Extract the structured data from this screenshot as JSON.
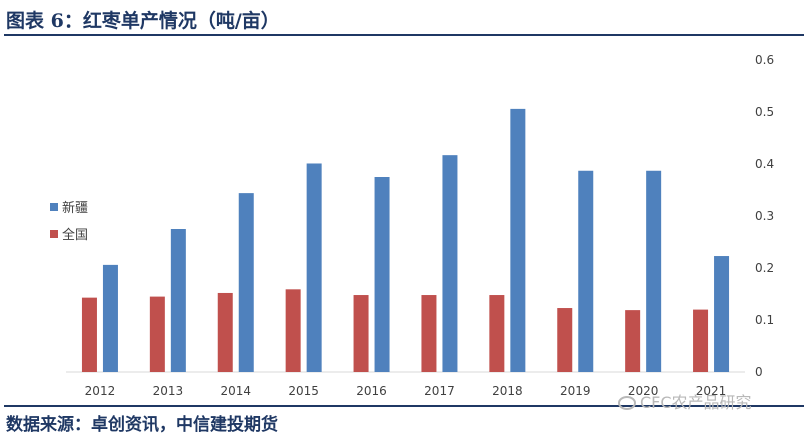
{
  "figure": {
    "title": "图表 6：红枣单产情况（吨/亩）",
    "source": "数据来源：卓创资讯，中信建投期货",
    "watermark": "CFC农产品研究"
  },
  "colors": {
    "xinjiang": "#4F81BD",
    "national": "#C0504D",
    "rule": "#1F3864",
    "axis": "#D9D9D9"
  },
  "chart_data": {
    "type": "bar",
    "categories": [
      "2012",
      "2013",
      "2014",
      "2015",
      "2016",
      "2017",
      "2018",
      "2019",
      "2020",
      "2021"
    ],
    "series": [
      {
        "name": "全国",
        "values": [
          0.143,
          0.145,
          0.152,
          0.159,
          0.148,
          0.148,
          0.148,
          0.123,
          0.119,
          0.12
        ]
      },
      {
        "name": "新疆",
        "values": [
          0.206,
          0.275,
          0.344,
          0.401,
          0.375,
          0.417,
          0.506,
          0.387,
          0.387,
          0.223
        ]
      }
    ],
    "ylim": [
      0,
      0.6
    ],
    "yticks": [
      "0",
      "0.1",
      "0.2",
      "0.3",
      "0.4",
      "0.5",
      "0.6"
    ],
    "y_axis_side": "right",
    "grid": false,
    "legend": [
      "新疆",
      "全国"
    ],
    "legend_position": "left"
  }
}
